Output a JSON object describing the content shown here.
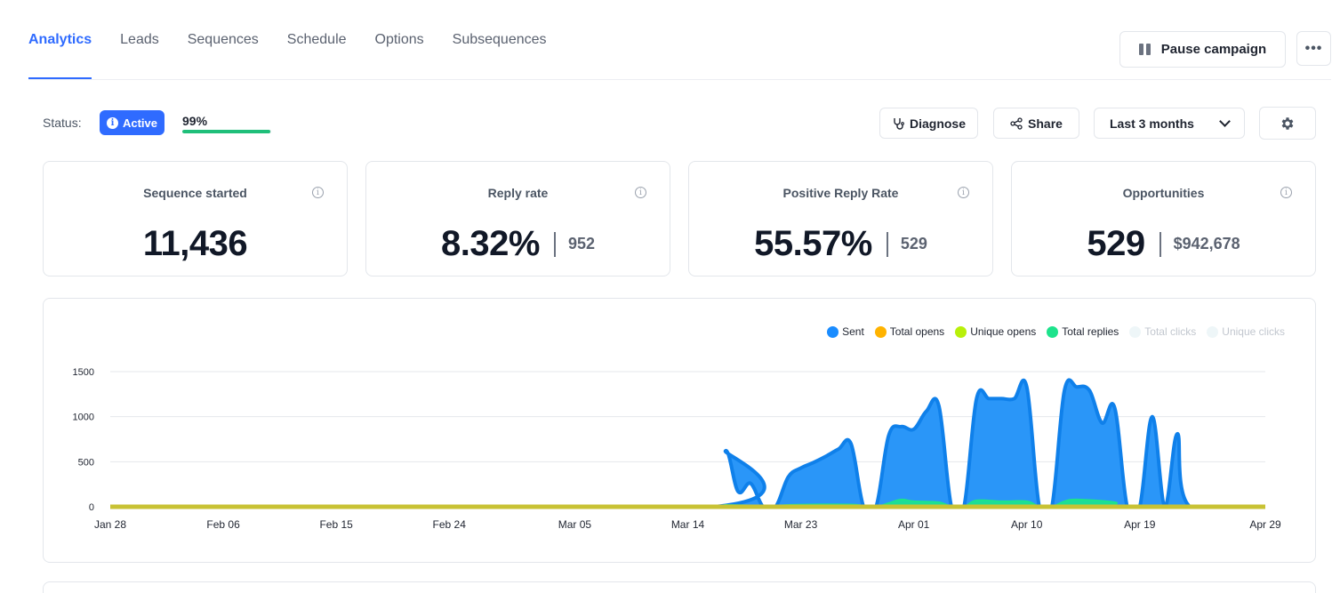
{
  "tabs": [
    {
      "label": "Analytics",
      "active": true
    },
    {
      "label": "Leads",
      "active": false
    },
    {
      "label": "Sequences",
      "active": false
    },
    {
      "label": "Schedule",
      "active": false
    },
    {
      "label": "Options",
      "active": false
    },
    {
      "label": "Subsequences",
      "active": false
    }
  ],
  "header": {
    "pause_label": "Pause campaign",
    "more_label": "•••"
  },
  "status": {
    "label": "Status:",
    "badge": "Active",
    "progress_text": "99%",
    "progress_value": 0.99
  },
  "toolbar": {
    "diagnose_label": "Diagnose",
    "share_label": "Share",
    "range_label": "Last 3 months"
  },
  "stats": [
    {
      "title": "Sequence started",
      "value": "11,436",
      "sub": ""
    },
    {
      "title": "Reply rate",
      "value": "8.32%",
      "sub": "952"
    },
    {
      "title": "Positive Reply Rate",
      "value": "55.57%",
      "sub": "529"
    },
    {
      "title": "Opportunities",
      "value": "529",
      "sub": "$942,678"
    }
  ],
  "colors": {
    "accent": "#2f6bff",
    "sent": "#1a8cff",
    "total_opens": "#ffb300",
    "unique_opens": "#b8f00a",
    "total_replies": "#1de38c",
    "clicks": "#eef6f8"
  },
  "chart_data": {
    "type": "area",
    "x_ticks": [
      "Jan 28",
      "Feb 06",
      "Feb 15",
      "Feb 24",
      "Mar 05",
      "Mar 14",
      "Mar 23",
      "Apr 01",
      "Apr 10",
      "Apr 19",
      "Apr 29"
    ],
    "x_range": [
      "Jan 28",
      "Apr 29"
    ],
    "y_ticks": [
      0,
      500,
      1000,
      1500
    ],
    "ylim": [
      0,
      1500
    ],
    "grid": true,
    "legend_position": "top-right",
    "series": [
      {
        "name": "Sent",
        "color": "#1a8cff",
        "visible": true,
        "points": [
          [
            "Jan 28",
            0
          ],
          [
            "Mar 16",
            0
          ],
          [
            "Mar 17",
            620
          ],
          [
            "Mar 18",
            170
          ],
          [
            "Mar 19",
            260
          ],
          [
            "Mar 20",
            0
          ],
          [
            "Mar 21",
            0
          ],
          [
            "Mar 22",
            330
          ],
          [
            "Mar 23",
            430
          ],
          [
            "Mar 24",
            490
          ],
          [
            "Mar 25",
            560
          ],
          [
            "Mar 26",
            640
          ],
          [
            "Mar 27",
            700
          ],
          [
            "Mar 28",
            0
          ],
          [
            "Mar 29",
            0
          ],
          [
            "Mar 30",
            790
          ],
          [
            "Mar 31",
            890
          ],
          [
            "Apr 01",
            860
          ],
          [
            "Apr 02",
            1060
          ],
          [
            "Apr 03",
            1120
          ],
          [
            "Apr 04",
            0
          ],
          [
            "Apr 05",
            0
          ],
          [
            "Apr 06",
            1200
          ],
          [
            "Apr 07",
            1200
          ],
          [
            "Apr 08",
            1200
          ],
          [
            "Apr 09",
            1200
          ],
          [
            "Apr 10",
            1330
          ],
          [
            "Apr 11",
            0
          ],
          [
            "Apr 12",
            0
          ],
          [
            "Apr 13",
            1290
          ],
          [
            "Apr 14",
            1330
          ],
          [
            "Apr 15",
            1290
          ],
          [
            "Apr 16",
            930
          ],
          [
            "Apr 17",
            1100
          ],
          [
            "Apr 18",
            0
          ],
          [
            "Apr 19",
            0
          ],
          [
            "Apr 20",
            1000
          ],
          [
            "Apr 21",
            0
          ],
          [
            "Apr 22",
            810
          ],
          [
            "Apr 23",
            0
          ],
          [
            "Apr 29",
            0
          ]
        ]
      },
      {
        "name": "Total opens",
        "color": "#ffb300",
        "visible": true,
        "points": [
          [
            "Jan 28",
            0
          ],
          [
            "Apr 29",
            0
          ]
        ]
      },
      {
        "name": "Unique opens",
        "color": "#b8f00a",
        "visible": true,
        "points": [
          [
            "Jan 28",
            0
          ],
          [
            "Apr 29",
            0
          ]
        ]
      },
      {
        "name": "Total replies",
        "color": "#1de38c",
        "visible": true,
        "points": [
          [
            "Jan 28",
            0
          ],
          [
            "Mar 16",
            0
          ],
          [
            "Mar 17",
            20
          ],
          [
            "Mar 20",
            0
          ],
          [
            "Mar 21",
            0
          ],
          [
            "Mar 22",
            20
          ],
          [
            "Mar 27",
            25
          ],
          [
            "Mar 28",
            0
          ],
          [
            "Mar 29",
            0
          ],
          [
            "Mar 30",
            40
          ],
          [
            "Mar 31",
            80
          ],
          [
            "Apr 01",
            60
          ],
          [
            "Apr 03",
            50
          ],
          [
            "Apr 04",
            0
          ],
          [
            "Apr 05",
            0
          ],
          [
            "Apr 06",
            70
          ],
          [
            "Apr 08",
            60
          ],
          [
            "Apr 10",
            60
          ],
          [
            "Apr 11",
            0
          ],
          [
            "Apr 12",
            0
          ],
          [
            "Apr 13",
            60
          ],
          [
            "Apr 14",
            80
          ],
          [
            "Apr 17",
            50
          ],
          [
            "Apr 18",
            0
          ],
          [
            "Apr 29",
            0
          ]
        ]
      },
      {
        "name": "Total clicks",
        "color": "#eef6f8",
        "visible": false,
        "points": []
      },
      {
        "name": "Unique clicks",
        "color": "#eef6f8",
        "visible": false,
        "points": []
      }
    ]
  }
}
